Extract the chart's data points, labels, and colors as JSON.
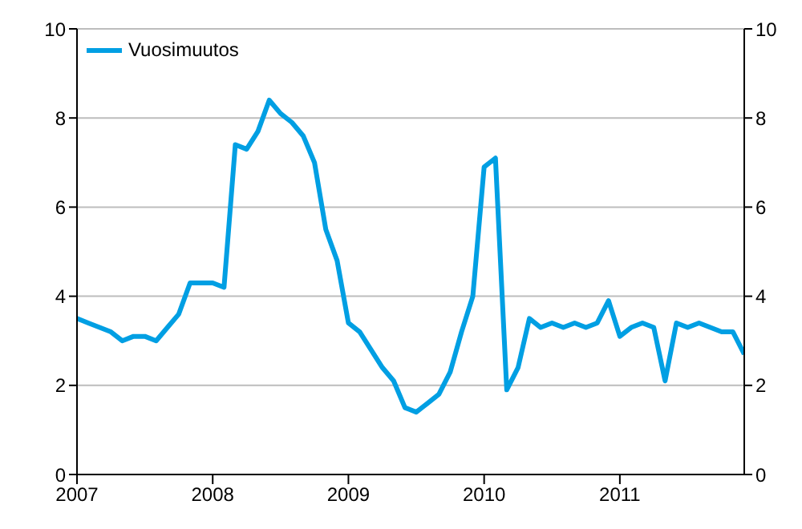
{
  "chart_data": {
    "type": "line",
    "x": [
      "2007-01",
      "2007-02",
      "2007-03",
      "2007-04",
      "2007-05",
      "2007-06",
      "2007-07",
      "2007-08",
      "2007-09",
      "2007-10",
      "2007-11",
      "2007-12",
      "2008-01",
      "2008-02",
      "2008-03",
      "2008-04",
      "2008-05",
      "2008-06",
      "2008-07",
      "2008-08",
      "2008-09",
      "2008-10",
      "2008-11",
      "2008-12",
      "2009-01",
      "2009-02",
      "2009-03",
      "2009-04",
      "2009-05",
      "2009-06",
      "2009-07",
      "2009-08",
      "2009-09",
      "2009-10",
      "2009-11",
      "2009-12",
      "2010-01",
      "2010-02",
      "2010-03",
      "2010-04",
      "2010-05",
      "2010-06",
      "2010-07",
      "2010-08",
      "2010-09",
      "2010-10",
      "2010-11",
      "2010-12",
      "2011-01",
      "2011-02",
      "2011-03",
      "2011-04",
      "2011-05",
      "2011-06",
      "2011-07",
      "2011-08",
      "2011-09",
      "2011-10",
      "2011-11",
      "2011-12"
    ],
    "series": [
      {
        "name": "Vuosimuutos",
        "color": "#009fe3",
        "values": [
          3.5,
          3.4,
          3.3,
          3.2,
          3.0,
          3.1,
          3.1,
          3.0,
          3.3,
          3.6,
          4.3,
          4.3,
          4.3,
          4.2,
          7.4,
          7.3,
          7.7,
          8.4,
          8.1,
          7.9,
          7.6,
          7.0,
          5.5,
          4.8,
          3.4,
          3.2,
          2.8,
          2.4,
          2.1,
          1.5,
          1.4,
          1.6,
          1.8,
          2.3,
          3.2,
          4.0,
          6.9,
          7.1,
          1.9,
          2.4,
          3.5,
          3.3,
          3.4,
          3.3,
          3.4,
          3.3,
          3.4,
          3.9,
          3.1,
          3.3,
          3.4,
          3.3,
          2.1,
          3.4,
          3.3,
          3.4,
          3.3,
          3.2,
          3.2,
          2.7
        ]
      }
    ],
    "xlim": [
      "2007-01",
      "2011-12"
    ],
    "xticks": [
      {
        "value": "2007-01",
        "label": "2007"
      },
      {
        "value": "2008-01",
        "label": "2008"
      },
      {
        "value": "2009-01",
        "label": "2009"
      },
      {
        "value": "2010-01",
        "label": "2010"
      },
      {
        "value": "2011-01",
        "label": "2011"
      }
    ],
    "ylim": [
      0,
      10
    ],
    "yticks": [
      0,
      2,
      4,
      6,
      8,
      10
    ],
    "y2lim": [
      0,
      10
    ],
    "y2ticks": [
      0,
      2,
      4,
      6,
      8,
      10
    ],
    "grid": "y",
    "legend": "top left",
    "marker": "none",
    "line_style": "solid"
  }
}
